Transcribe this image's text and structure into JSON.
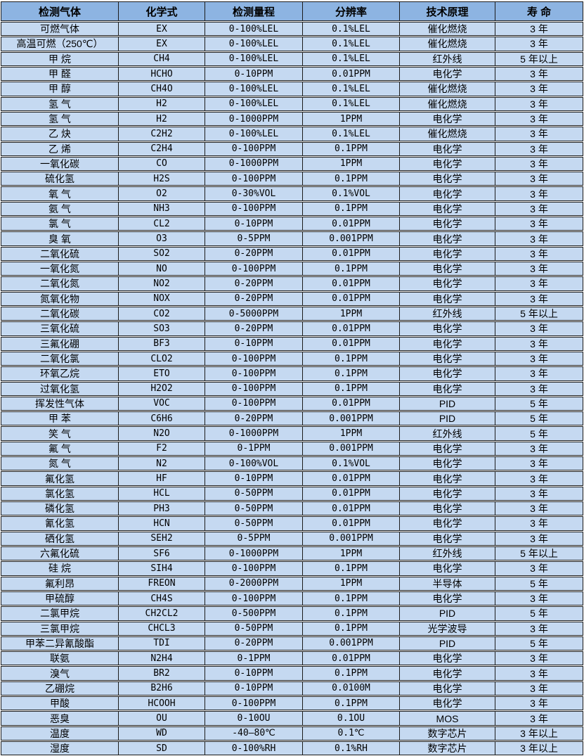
{
  "table": {
    "title": "gas-sensor-specification-table",
    "columns": [
      "检测气体",
      "化学式",
      "检测量程",
      "分辨率",
      "技术原理",
      "寿 命"
    ],
    "rows": [
      [
        "可燃气体",
        "EX",
        "0-100%LEL",
        "0.1%LEL",
        "催化燃烧",
        "3 年"
      ],
      [
        "高温可燃（250℃）",
        "EX",
        "0-100%LEL",
        "0.1%LEL",
        "催化燃烧",
        "3 年"
      ],
      [
        "甲 烷",
        "CH4",
        "0-100%LEL",
        "0.1%LEL",
        "红外线",
        "5 年以上"
      ],
      [
        "甲 醛",
        "HCHO",
        "0-10PPM",
        "0.01PPM",
        "电化学",
        "3 年"
      ],
      [
        "甲 醇",
        "CH4O",
        "0-100%LEL",
        "0.1%LEL",
        "催化燃烧",
        "3 年"
      ],
      [
        "氢 气",
        "H2",
        "0-100%LEL",
        "0.1%LEL",
        "催化燃烧",
        "3 年"
      ],
      [
        "氢 气",
        "H2",
        "0-1000PPM",
        "1PPM",
        "电化学",
        "3 年"
      ],
      [
        "乙 炔",
        "C2H2",
        "0-100%LEL",
        "0.1%LEL",
        "催化燃烧",
        "3 年"
      ],
      [
        "乙 烯",
        "C2H4",
        "0-100PPM",
        "0.1PPM",
        "电化学",
        "3 年"
      ],
      [
        "一氧化碳",
        "CO",
        "0-1000PPM",
        "1PPM",
        "电化学",
        "3 年"
      ],
      [
        "硫化氢",
        "H2S",
        "0-100PPM",
        "0.1PPM",
        "电化学",
        "3 年"
      ],
      [
        "氧 气",
        "O2",
        "0-30%VOL",
        "0.1%VOL",
        "电化学",
        "3 年"
      ],
      [
        "氨 气",
        "NH3",
        "0-100PPM",
        "0.1PPM",
        "电化学",
        "3 年"
      ],
      [
        "氯 气",
        "CL2",
        "0-10PPM",
        "0.01PPM",
        "电化学",
        "3 年"
      ],
      [
        "臭 氧",
        "O3",
        "0-5PPM",
        "0.001PPM",
        "电化学",
        "3 年"
      ],
      [
        "二氧化硫",
        "SO2",
        "0-20PPM",
        "0.01PPM",
        "电化学",
        "3 年"
      ],
      [
        "一氧化氮",
        "NO",
        "0-100PPM",
        "0.1PPM",
        "电化学",
        "3 年"
      ],
      [
        "二氧化氮",
        "NO2",
        "0-20PPM",
        "0.01PPM",
        "电化学",
        "3 年"
      ],
      [
        "氮氧化物",
        "NOX",
        "0-20PPM",
        "0.01PPM",
        "电化学",
        "3 年"
      ],
      [
        "二氧化碳",
        "CO2",
        "0-5000PPM",
        "1PPM",
        "红外线",
        "5 年以上"
      ],
      [
        "三氧化硫",
        "SO3",
        "0-20PPM",
        "0.01PPM",
        "电化学",
        "3 年"
      ],
      [
        "三氟化硼",
        "BF3",
        "0-10PPM",
        "0.01PPM",
        "电化学",
        "3 年"
      ],
      [
        "二氧化氯",
        "CLO2",
        "0-100PPM",
        "0.1PPM",
        "电化学",
        "3 年"
      ],
      [
        "环氧乙烷",
        "ETO",
        "0-100PPM",
        "0.1PPM",
        "电化学",
        "3 年"
      ],
      [
        "过氧化氢",
        "H2O2",
        "0-100PPM",
        "0.1PPM",
        "电化学",
        "3 年"
      ],
      [
        "挥发性气体",
        "VOC",
        "0-100PPM",
        "0.01PPM",
        "PID",
        "5 年"
      ],
      [
        "甲 苯",
        "C6H6",
        "0-20PPM",
        "0.001PPM",
        "PID",
        "5 年"
      ],
      [
        "笑 气",
        "N2O",
        "0-1000PPM",
        "1PPM",
        "红外线",
        "5 年"
      ],
      [
        "氟 气",
        "F2",
        "0-1PPM",
        "0.001PPM",
        "电化学",
        "3 年"
      ],
      [
        "氮 气",
        "N2",
        "0-100%VOL",
        "0.1%VOL",
        "电化学",
        "3 年"
      ],
      [
        "氟化氢",
        "HF",
        "0-10PPM",
        "0.01PPM",
        "电化学",
        "3 年"
      ],
      [
        "氯化氢",
        "HCL",
        "0-50PPM",
        "0.01PPM",
        "电化学",
        "3 年"
      ],
      [
        "磷化氢",
        "PH3",
        "0-50PPM",
        "0.01PPM",
        "电化学",
        "3 年"
      ],
      [
        "氰化氢",
        "HCN",
        "0-50PPM",
        "0.01PPM",
        "电化学",
        "3 年"
      ],
      [
        "硒化氢",
        "SEH2",
        "0-5PPM",
        "0.001PPM",
        "电化学",
        "3 年"
      ],
      [
        "六氟化硫",
        "SF6",
        "0-1000PPM",
        "1PPM",
        "红外线",
        "5 年以上"
      ],
      [
        "硅 烷",
        "SIH4",
        "0-100PPM",
        "0.1PPM",
        "电化学",
        "3 年"
      ],
      [
        "氟利昂",
        "FREON",
        "0-2000PPM",
        "1PPM",
        "半导体",
        "5 年"
      ],
      [
        "甲硫醇",
        "CH4S",
        "0-100PPM",
        "0.1PPM",
        "电化学",
        "3 年"
      ],
      [
        "二氯甲烷",
        "CH2CL2",
        "0-500PPM",
        "0.1PPM",
        "PID",
        "5 年"
      ],
      [
        "三氯甲烷",
        "CHCL3",
        "0-50PPM",
        "0.1PPM",
        "光学波导",
        "3 年"
      ],
      [
        "甲苯二异氰酸酯",
        "TDI",
        "0-20PPM",
        "0.001PPM",
        "PID",
        "5 年"
      ],
      [
        "联氨",
        "N2H4",
        "0-1PPM",
        "0.01PPM",
        "电化学",
        "3 年"
      ],
      [
        "溴气",
        "BR2",
        "0-10PPM",
        "0.1PPM",
        "电化学",
        "3 年"
      ],
      [
        "乙硼烷",
        "B2H6",
        "0-10PPM",
        "0.0100M",
        "电化学",
        "3 年"
      ],
      [
        "甲酸",
        "HCOOH",
        "0-100PPM",
        "0.1PPM",
        "电化学",
        "3 年"
      ],
      [
        "恶臭",
        "OU",
        "0-10OU",
        "0.1OU",
        "MOS",
        "3 年"
      ],
      [
        "温度",
        "WD",
        "-40—80℃",
        "0.1℃",
        "数字芯片",
        "3 年以上"
      ],
      [
        "湿度",
        "SD",
        "0-100%RH",
        "0.1%RH",
        "数字芯片",
        "3 年以上"
      ]
    ],
    "colors": {
      "header_bg": "#8DB4E2",
      "row_bg": "#C5D9F1",
      "border": "#1C1C1C",
      "gap": "#FFFFFF",
      "text": "#000000"
    }
  }
}
